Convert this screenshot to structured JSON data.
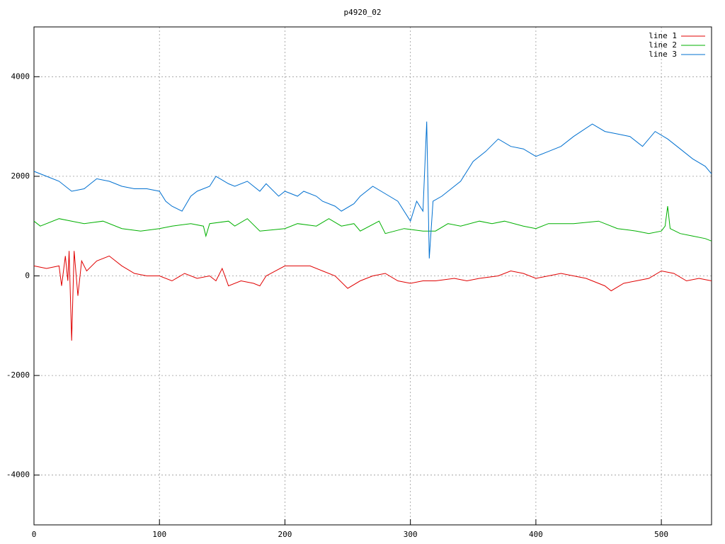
{
  "chart_data": {
    "type": "line",
    "title": "p4920_02",
    "xlim": [
      0,
      540
    ],
    "xticks": [
      0,
      100,
      200,
      300,
      400,
      500
    ],
    "ylim": [
      -5000,
      5000
    ],
    "yticks": [
      -4000,
      -2000,
      0,
      2000,
      4000
    ],
    "grid": true,
    "legend": "top-right",
    "series": [
      {
        "name": "line 1",
        "color": "#e00000",
        "x": [
          0,
          10,
          20,
          22,
          25,
          27,
          28,
          30,
          32,
          35,
          38,
          42,
          50,
          60,
          70,
          80,
          90,
          100,
          110,
          120,
          130,
          140,
          145,
          150,
          155,
          165,
          175,
          180,
          185,
          200,
          210,
          220,
          230,
          240,
          250,
          260,
          270,
          280,
          290,
          300,
          310,
          320,
          335,
          345,
          355,
          370,
          380,
          390,
          400,
          410,
          420,
          430,
          440,
          455,
          460,
          470,
          480,
          490,
          500,
          510,
          520,
          530,
          540
        ],
        "values": [
          200,
          150,
          200,
          -200,
          400,
          -100,
          500,
          -1300,
          500,
          -400,
          300,
          100,
          300,
          400,
          200,
          50,
          0,
          0,
          -100,
          50,
          -50,
          0,
          -100,
          150,
          -200,
          -100,
          -150,
          -200,
          0,
          200,
          200,
          200,
          100,
          0,
          -250,
          -100,
          0,
          50,
          -100,
          -150,
          -100,
          -100,
          -50,
          -100,
          -50,
          0,
          100,
          50,
          -50,
          0,
          50,
          0,
          -50,
          -200,
          -300,
          -150,
          -100,
          -50,
          100,
          50,
          -100,
          -50,
          -100
        ]
      },
      {
        "name": "line 2",
        "color": "#00b000",
        "x": [
          0,
          5,
          20,
          30,
          40,
          55,
          70,
          85,
          100,
          110,
          125,
          135,
          137,
          140,
          155,
          160,
          170,
          180,
          200,
          210,
          225,
          235,
          245,
          255,
          260,
          275,
          280,
          295,
          310,
          320,
          330,
          340,
          355,
          365,
          375,
          390,
          400,
          410,
          430,
          450,
          465,
          480,
          490,
          500,
          503,
          505,
          507,
          515,
          525,
          535,
          540
        ],
        "values": [
          1100,
          1000,
          1150,
          1100,
          1050,
          1100,
          950,
          900,
          950,
          1000,
          1050,
          1000,
          800,
          1050,
          1100,
          1000,
          1150,
          900,
          950,
          1050,
          1000,
          1150,
          1000,
          1050,
          900,
          1100,
          850,
          950,
          900,
          900,
          1050,
          1000,
          1100,
          1050,
          1100,
          1000,
          950,
          1050,
          1050,
          1100,
          950,
          900,
          850,
          900,
          1000,
          1400,
          950,
          850,
          800,
          750,
          700
        ]
      },
      {
        "name": "line 3",
        "color": "#0070d0",
        "x": [
          0,
          10,
          20,
          30,
          40,
          50,
          60,
          70,
          80,
          90,
          100,
          105,
          110,
          118,
          125,
          130,
          140,
          145,
          155,
          160,
          170,
          180,
          185,
          195,
          200,
          210,
          215,
          225,
          230,
          240,
          245,
          255,
          260,
          270,
          280,
          290,
          300,
          305,
          310,
          313,
          315,
          318,
          325,
          330,
          340,
          350,
          360,
          370,
          380,
          390,
          400,
          410,
          420,
          430,
          445,
          455,
          465,
          475,
          485,
          495,
          505,
          515,
          525,
          535,
          540
        ],
        "values": [
          2100,
          2000,
          1900,
          1700,
          1750,
          1950,
          1900,
          1800,
          1750,
          1750,
          1700,
          1500,
          1400,
          1300,
          1600,
          1700,
          1800,
          2000,
          1850,
          1800,
          1900,
          1700,
          1850,
          1600,
          1700,
          1600,
          1700,
          1600,
          1500,
          1400,
          1300,
          1450,
          1600,
          1800,
          1650,
          1500,
          1100,
          1500,
          1300,
          3100,
          350,
          1500,
          1600,
          1700,
          1900,
          2300,
          2500,
          2750,
          2600,
          2550,
          2400,
          2500,
          2600,
          2800,
          3050,
          2900,
          2850,
          2800,
          2600,
          2900,
          2750,
          2550,
          2350,
          2200,
          2050
        ]
      }
    ]
  }
}
